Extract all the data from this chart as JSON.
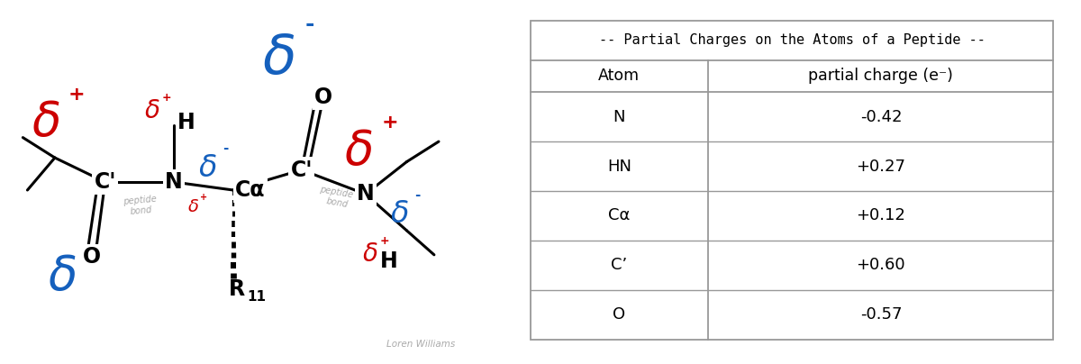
{
  "table_title": "-- Partial Charges on the Atoms of a Peptide --",
  "col_headers": [
    "Atom",
    "partial charge (e⁻)"
  ],
  "rows": [
    [
      "N",
      "-0.42"
    ],
    [
      "HN",
      "+0.27"
    ],
    [
      "Cα",
      "+0.12"
    ],
    [
      "C’",
      "+0.60"
    ],
    [
      "O",
      "-0.57"
    ]
  ],
  "red": "#CC0000",
  "blue": "#1560BD",
  "black": "#000000",
  "gray": "#AAAAAA",
  "bg": "#FFFFFF"
}
